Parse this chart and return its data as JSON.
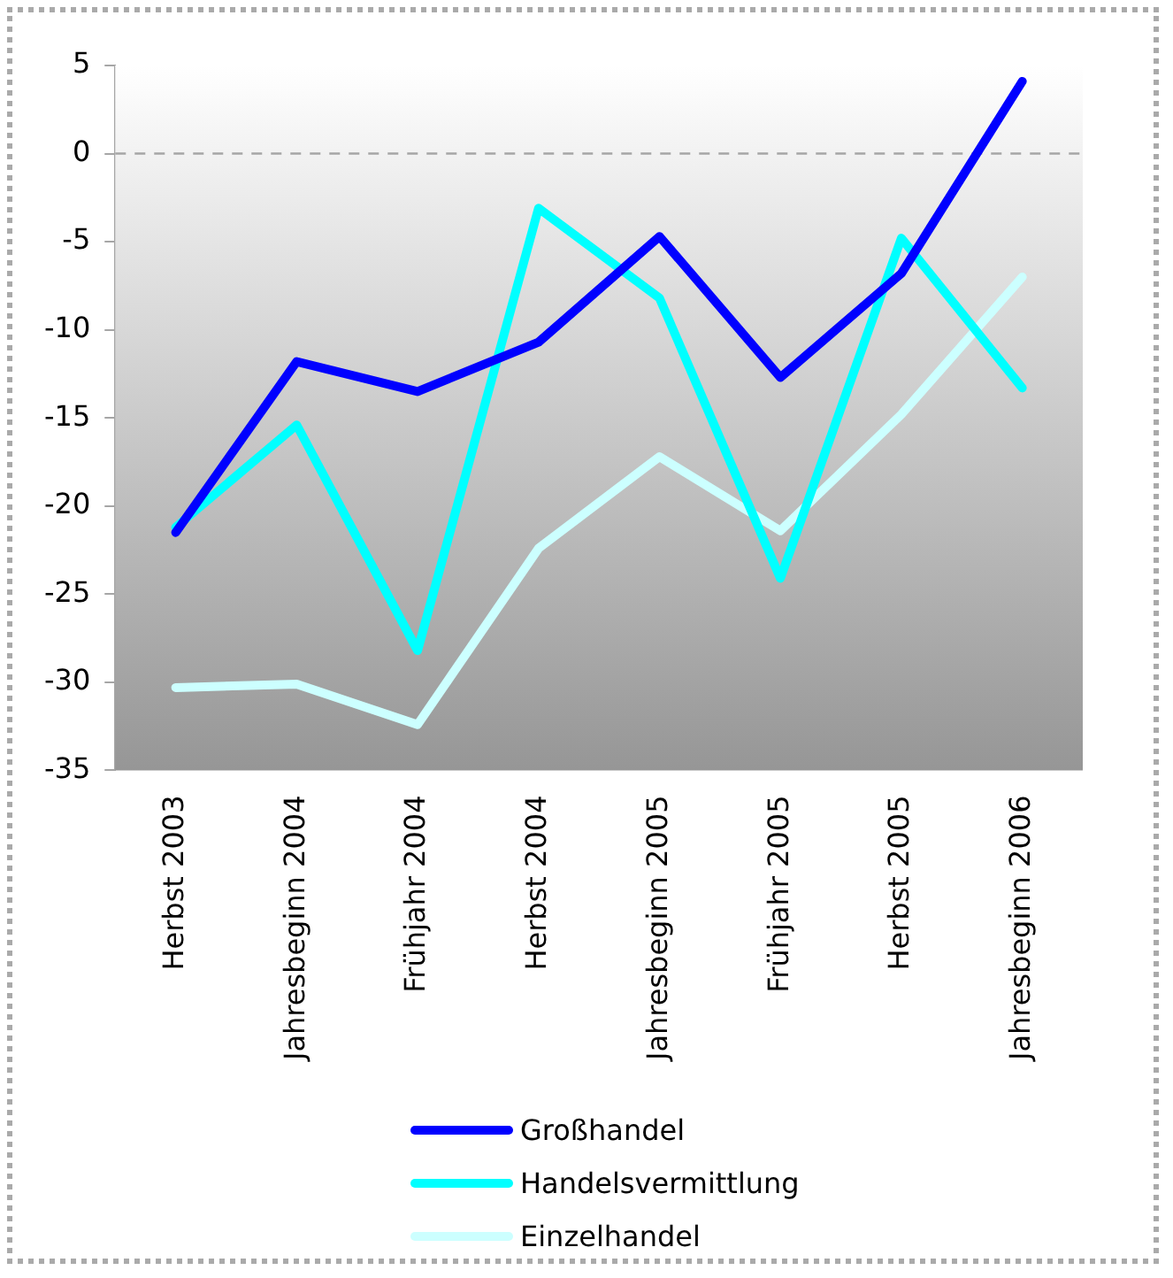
{
  "chart_data": {
    "type": "line",
    "categories": [
      "Herbst 2003",
      "Jahresbeginn 2004",
      "Frühjahr 2004",
      "Herbst 2004",
      "Jahresbeginn 2005",
      "Frühjahr 2005",
      "Herbst 2005",
      "Jahresbeginn 2006"
    ],
    "series": [
      {
        "name": "Großhandel",
        "color": "#0000ff",
        "values": [
          -21.5,
          -11.8,
          -13.5,
          -10.7,
          -4.7,
          -12.7,
          -6.8,
          4.1
        ]
      },
      {
        "name": "Handelsvermittlung",
        "color": "#00ffff",
        "values": [
          -21.2,
          -15.4,
          -28.2,
          -3.1,
          -8.2,
          -24.1,
          -4.8,
          -13.3
        ]
      },
      {
        "name": "Einzelhandel",
        "color": "#ccffff",
        "values": [
          -30.3,
          -30.1,
          -32.4,
          -22.4,
          -17.2,
          -21.4,
          -14.8,
          -7.0
        ]
      }
    ],
    "ylim": [
      -35,
      5
    ],
    "yticks": [
      -35,
      -30,
      -25,
      -20,
      -15,
      -10,
      -5,
      0,
      5
    ],
    "grid": false,
    "legend": "bottom",
    "marker": "none",
    "line_style": "solid",
    "ref_lines": [
      {
        "axis": "y",
        "value": 0,
        "color": "#a6a6a6",
        "line_style": "dashed"
      }
    ]
  }
}
